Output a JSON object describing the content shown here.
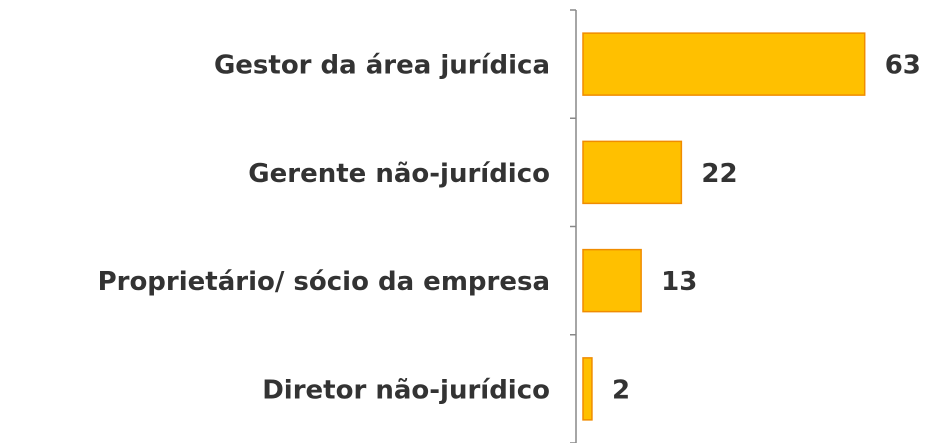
{
  "chart_data": {
    "type": "bar",
    "orientation": "horizontal",
    "categories": [
      "Gestor da área jurídica",
      "Gerente não-jurídico",
      "Proprietário/ sócio da empresa",
      "Diretor não-jurídico"
    ],
    "values": [
      63,
      22,
      13,
      2
    ],
    "color": "#FFC000",
    "edge_color": "#F08C00",
    "xlim": [
      0,
      70
    ]
  }
}
